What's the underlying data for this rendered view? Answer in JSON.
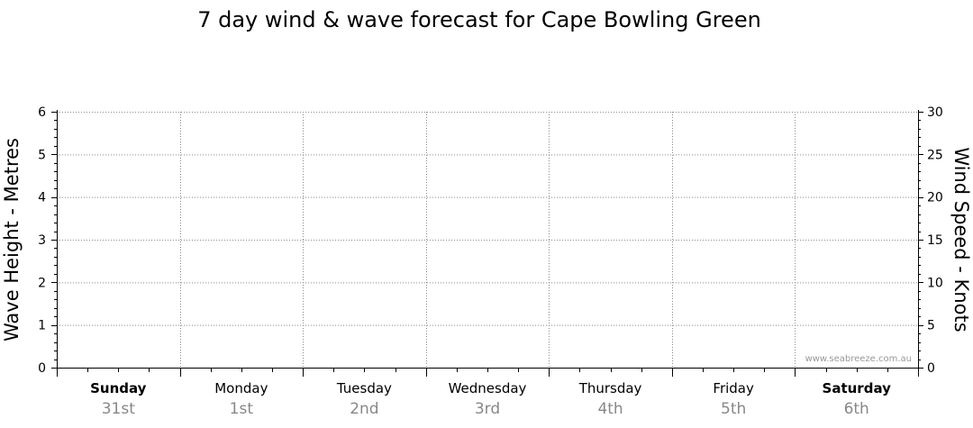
{
  "chart_data": {
    "type": "line",
    "title": "7 day wind & wave forecast for Cape Bowling Green",
    "ylabel_left": "Wave Height - Metres",
    "ylabel_right": "Wind Speed - Knots",
    "left_axis": {
      "range": [
        0,
        6
      ],
      "ticks": [
        "0",
        "1",
        "2",
        "3",
        "4",
        "5",
        "6"
      ]
    },
    "right_axis": {
      "range": [
        0,
        30
      ],
      "ticks": [
        "0",
        "5",
        "10",
        "15",
        "20",
        "25",
        "30"
      ]
    },
    "days": [
      {
        "day": "Sunday",
        "date": "31st",
        "bold": true
      },
      {
        "day": "Monday",
        "date": "1st",
        "bold": false
      },
      {
        "day": "Tuesday",
        "date": "2nd",
        "bold": false
      },
      {
        "day": "Wednesday",
        "date": "3rd",
        "bold": false
      },
      {
        "day": "Thursday",
        "date": "4th",
        "bold": false
      },
      {
        "day": "Friday",
        "date": "5th",
        "bold": false
      },
      {
        "day": "Saturday",
        "date": "6th",
        "bold": true
      }
    ],
    "series": [],
    "grid": true
  },
  "watermark": "www.seabreeze.com.au"
}
